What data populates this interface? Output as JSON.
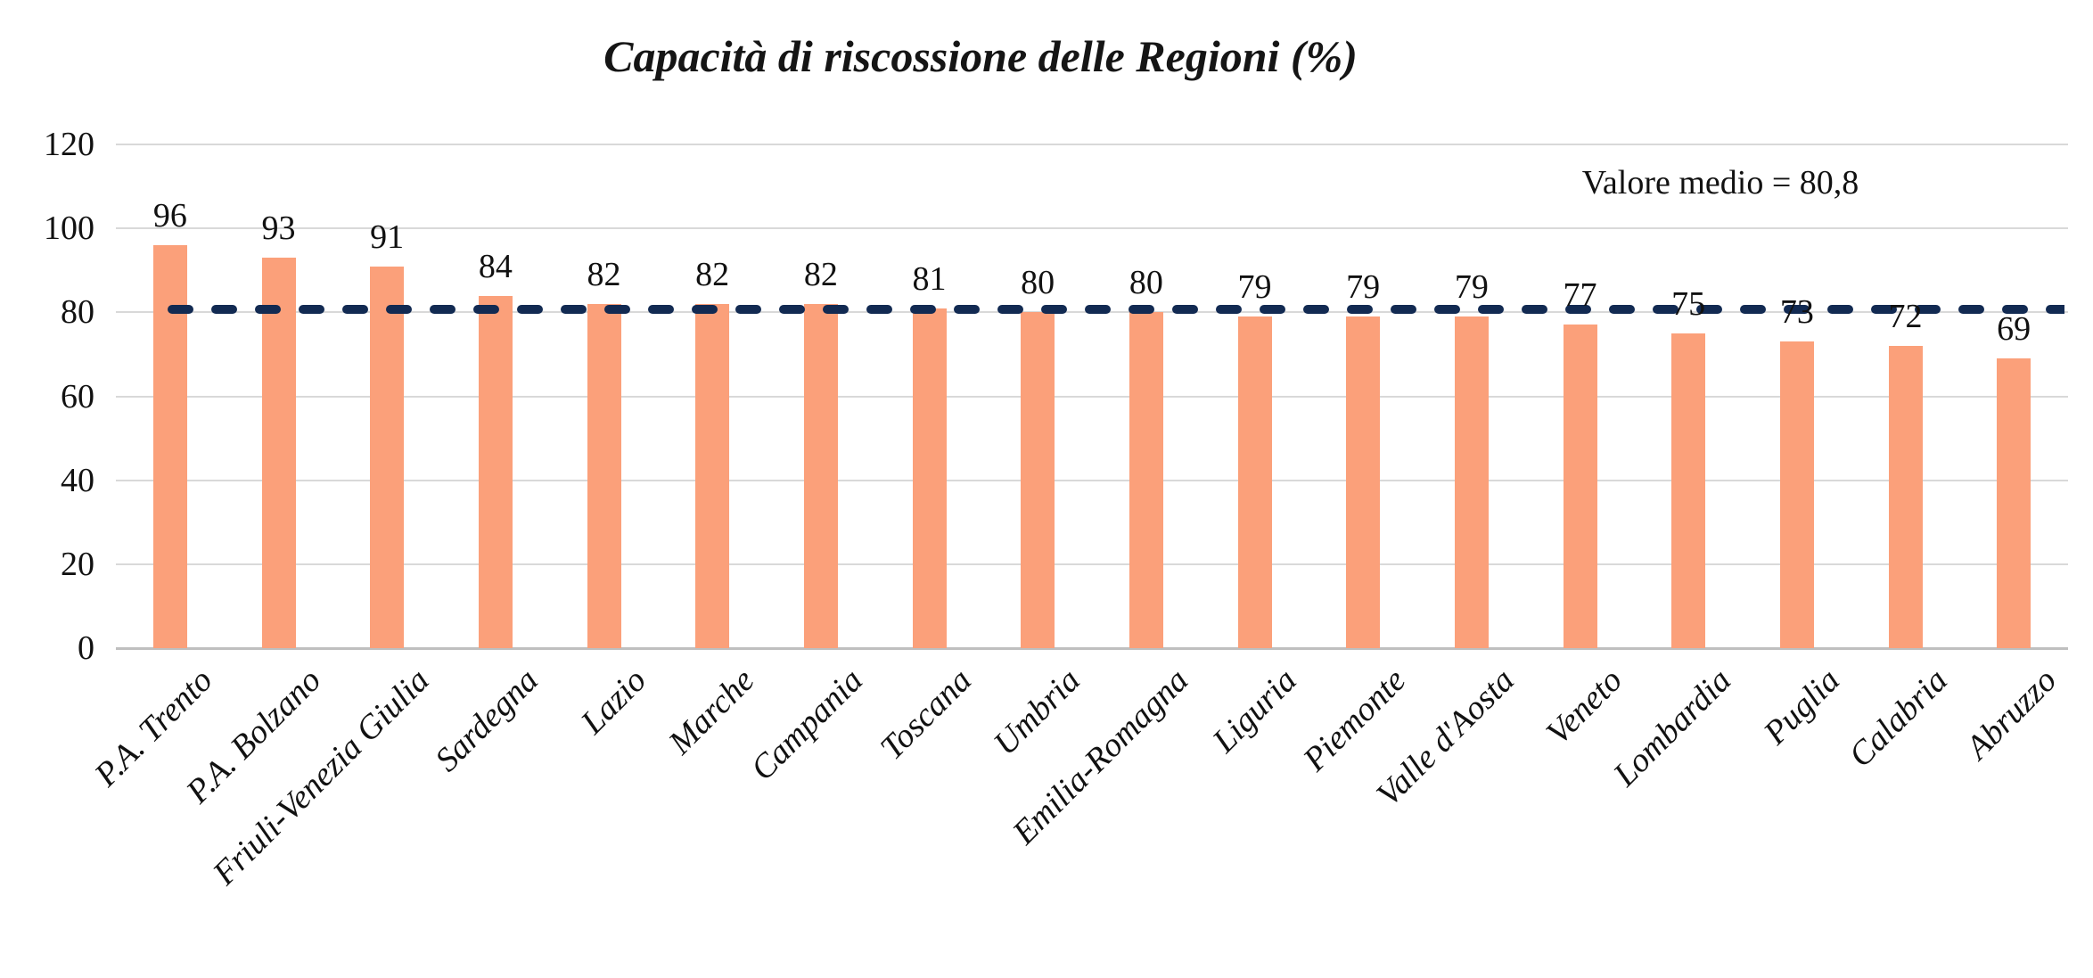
{
  "chart_data": {
    "type": "bar",
    "title": "Capacità di riscossione delle Regioni (%)",
    "categories": [
      "P.A. Trento",
      "P.A. Bolzano",
      "Friuli-Venezia Giulia",
      "Sardegna",
      "Lazio",
      "Marche",
      "Campania",
      "Toscana",
      "Umbria",
      "Emilia-Romagna",
      "Liguria",
      "Piemonte",
      "Valle d'Aosta",
      "Veneto",
      "Lombardia",
      "Puglia",
      "Calabria",
      "Abruzzo"
    ],
    "values": [
      96,
      93,
      91,
      84,
      82,
      82,
      82,
      81,
      80,
      80,
      79,
      79,
      79,
      77,
      75,
      73,
      72,
      69
    ],
    "mean_value": 80.8,
    "mean_label": "Valore medio = 80,8",
    "xlabel": "",
    "ylabel": "",
    "ylim": [
      0,
      120
    ],
    "yticks": [
      0,
      20,
      40,
      60,
      80,
      100,
      120
    ],
    "grid": "horizontal",
    "legend": "none",
    "bar_color": "#FBA07A",
    "mean_line_color": "#122A52",
    "gridline_color": "#D9D9D9",
    "axis_line_color": "#BFBFBF"
  }
}
